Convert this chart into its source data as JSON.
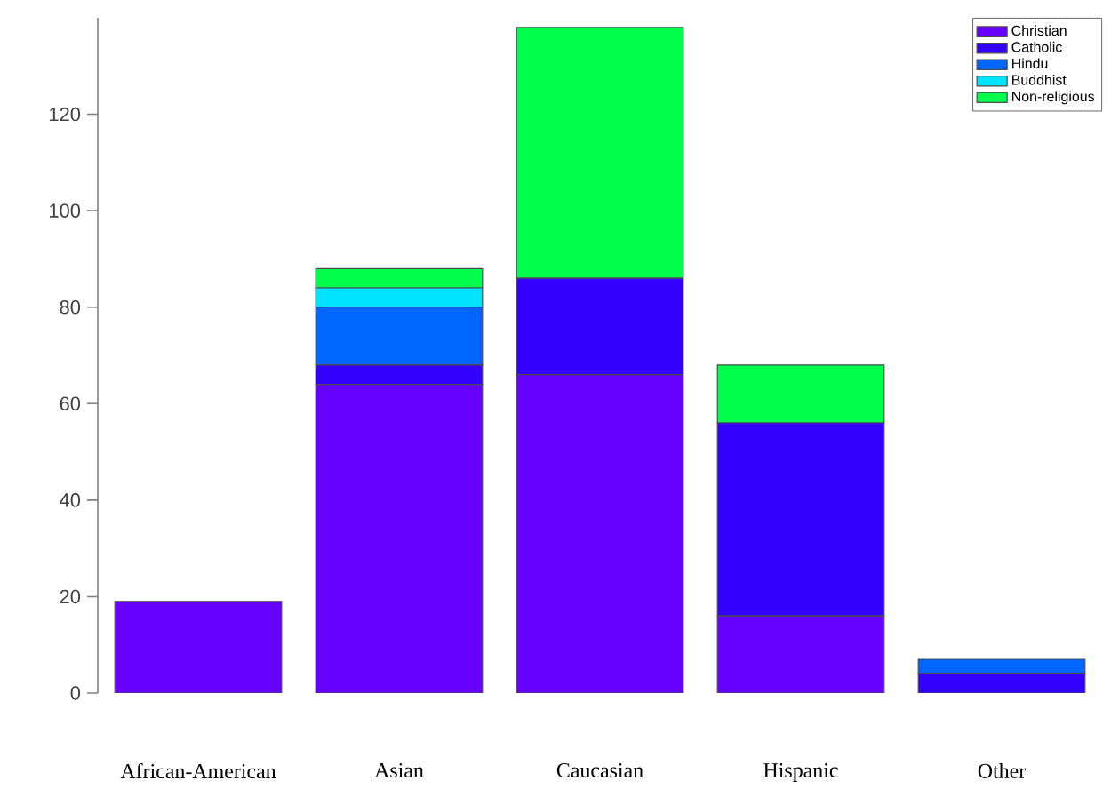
{
  "chart_data": {
    "type": "bar",
    "stacked": true,
    "categories": [
      "African-American",
      "Asian",
      "Caucasian",
      "Hispanic",
      "Other"
    ],
    "series": [
      {
        "name": "Christian",
        "color": "#6600ff",
        "values": [
          19,
          64,
          66,
          16,
          0
        ]
      },
      {
        "name": "Catholic",
        "color": "#3300ff",
        "values": [
          0,
          4,
          20,
          40,
          4
        ]
      },
      {
        "name": "Hindu",
        "color": "#0066ff",
        "values": [
          0,
          12,
          0,
          0,
          3
        ]
      },
      {
        "name": "Buddhist",
        "color": "#00e5ff",
        "values": [
          0,
          4,
          0,
          0,
          0
        ]
      },
      {
        "name": "Non-religious",
        "color": "#00ff4d",
        "values": [
          0,
          4,
          52,
          12,
          0
        ]
      }
    ],
    "ylim": [
      0,
      140
    ],
    "yticks": [
      0,
      20,
      40,
      60,
      80,
      100,
      120
    ],
    "legend": "top right"
  }
}
